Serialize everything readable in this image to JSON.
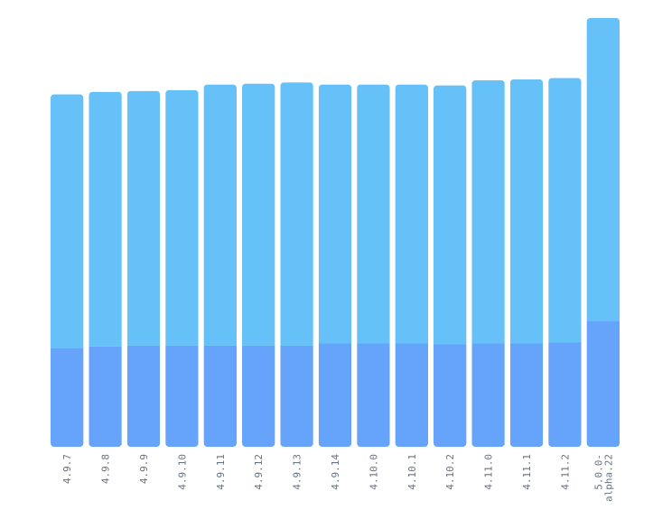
{
  "chart_data": {
    "type": "bar",
    "stacked": true,
    "grid": false,
    "legend": "none",
    "categories": [
      "4.9.7",
      "4.9.8",
      "4.9.9",
      "4.9.10",
      "4.9.11",
      "4.9.12",
      "4.9.13",
      "4.9.14",
      "4.10.0",
      "4.10.1",
      "4.10.2",
      "4.11.0",
      "4.11.1",
      "4.11.2",
      "5.0.0-alpha.22"
    ],
    "category_lines": [
      [
        "4.9.7"
      ],
      [
        "4.9.8"
      ],
      [
        "4.9.9"
      ],
      [
        "4.9.10"
      ],
      [
        "4.9.11"
      ],
      [
        "4.9.12"
      ],
      [
        "4.9.13"
      ],
      [
        "4.9.14"
      ],
      [
        "4.10.0"
      ],
      [
        "4.10.1"
      ],
      [
        "4.10.2"
      ],
      [
        "4.11.0"
      ],
      [
        "4.11.1"
      ],
      [
        "4.11.2"
      ],
      [
        "5.0.0-",
        "alpha.22"
      ]
    ],
    "series": [
      {
        "color": "#66a3fb",
        "values": [
          23.1,
          23.4,
          23.6,
          23.6,
          23.6,
          23.6,
          23.6,
          24.1,
          24.1,
          24.1,
          23.9,
          24.1,
          24.1,
          24.4,
          29.4
        ]
      },
      {
        "color": "#65c1f8",
        "values": [
          59.1,
          59.4,
          59.4,
          59.6,
          60.9,
          61.1,
          61.4,
          60.4,
          60.4,
          60.4,
          60.4,
          61.4,
          61.6,
          61.6,
          70.6
        ]
      }
    ],
    "ylim": [
      0,
      100
    ],
    "xlabel": "",
    "ylabel": ""
  }
}
